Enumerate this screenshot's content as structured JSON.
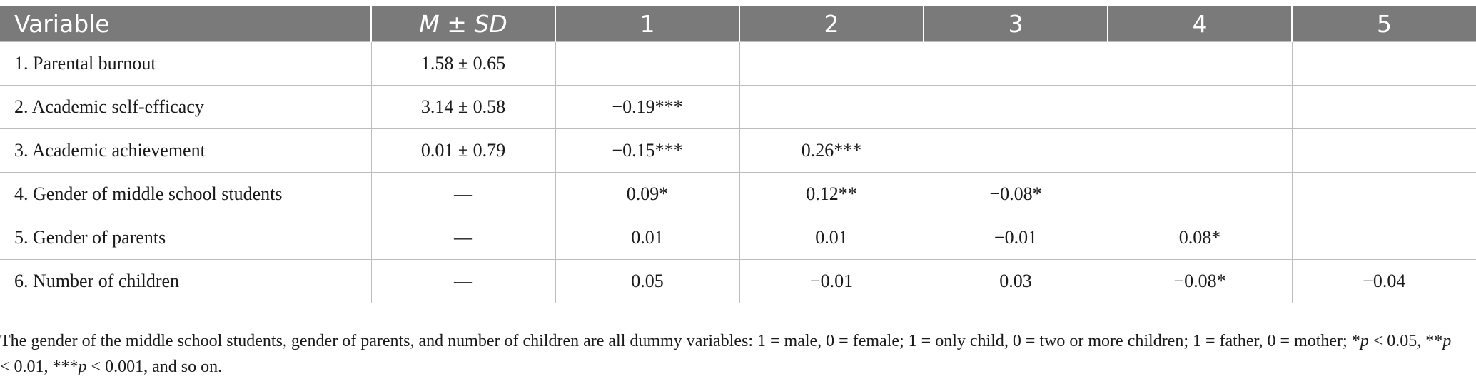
{
  "table": {
    "headers": {
      "variable": "Variable",
      "m": "M",
      "pm": " ± ",
      "sd": "SD",
      "cols": [
        "1",
        "2",
        "3",
        "4",
        "5"
      ]
    },
    "rows": [
      {
        "label": "1. Parental burnout",
        "msd": "1.58 ± 0.65",
        "cells": [
          "",
          "",
          "",
          "",
          ""
        ]
      },
      {
        "label": "2. Academic self-efficacy",
        "msd": "3.14 ± 0.58",
        "cells": [
          "−0.19***",
          "",
          "",
          "",
          ""
        ]
      },
      {
        "label": "3. Academic achievement",
        "msd": "0.01 ± 0.79",
        "cells": [
          "−0.15***",
          "0.26***",
          "",
          "",
          ""
        ]
      },
      {
        "label": "4. Gender of middle school students",
        "msd": "—",
        "cells": [
          "0.09*",
          "0.12**",
          "−0.08*",
          "",
          ""
        ]
      },
      {
        "label": "5. Gender of parents",
        "msd": "—",
        "cells": [
          "0.01",
          "0.01",
          "−0.01",
          "0.08*",
          ""
        ]
      },
      {
        "label": "6. Number of children",
        "msd": "—",
        "cells": [
          "0.05",
          "−0.01",
          "0.03",
          "−0.08*",
          "−0.04"
        ]
      }
    ]
  },
  "footnote": {
    "text1": "The gender of the middle school students, gender of parents, and number of children are all dummy variables: 1 = male, 0 = female; 1 = only child, 0 = two or more children; 1 = father, 0 = mother; *",
    "p1": "p",
    "text2": " < 0.05, **",
    "p2": "p",
    "text3": " < 0.01, ***",
    "p3": "p",
    "text4": " < 0.001, and so on."
  }
}
